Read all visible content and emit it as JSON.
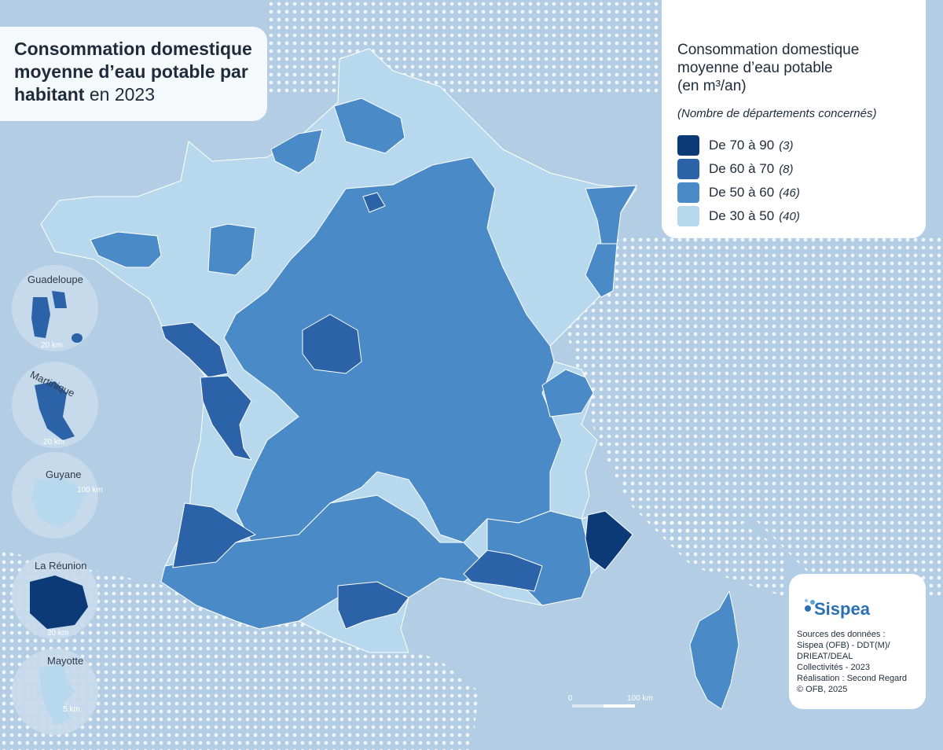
{
  "title": {
    "bold": "Consommation domestique moyenne d’eau potable par habitant",
    "normal": "en 2023"
  },
  "legend": {
    "title_line1": "Consommation domestique",
    "title_line2": "moyenne d’eau potable",
    "title_line3": "(en m³/an)",
    "subtitle": "(Nombre de départements concernés)",
    "classes": [
      {
        "label": "De 70 à 90",
        "count": "(3)",
        "color": "#0b3a76"
      },
      {
        "label": "De 60 à 70",
        "count": "(8)",
        "color": "#2c62a8"
      },
      {
        "label": "De 50 à 60",
        "count": "(46)",
        "color": "#4a8ac7"
      },
      {
        "label": "De 30 à 50",
        "count": "(40)",
        "color": "#b8d8ee"
      }
    ]
  },
  "insets": [
    {
      "name": "Guadeloupe",
      "scale": "20 km"
    },
    {
      "name": "Martinique",
      "scale": "20 km"
    },
    {
      "name": "Guyane",
      "scale": "100 km"
    },
    {
      "name": "La Réunion",
      "scale": "20 km"
    },
    {
      "name": "Mayotte",
      "scale": "5 km"
    }
  ],
  "scale_bar": {
    "start": "0",
    "end": "100 km"
  },
  "logo": "Sispea",
  "sources": [
    "Sources des données :",
    "Sispea (OFB) - DDT(M)/",
    "DRIEAT/DEAL",
    "Collectivités - 2023",
    "Réalisation : Second Regard",
    "© OFB, 2025"
  ],
  "colors": {
    "background": "#b2cde4",
    "sea_dots": "#ffffff",
    "class_70_90": "#0b3a76",
    "class_60_70": "#2c62a8",
    "class_50_60": "#4a8ac7",
    "class_30_50": "#b8d8ee"
  }
}
